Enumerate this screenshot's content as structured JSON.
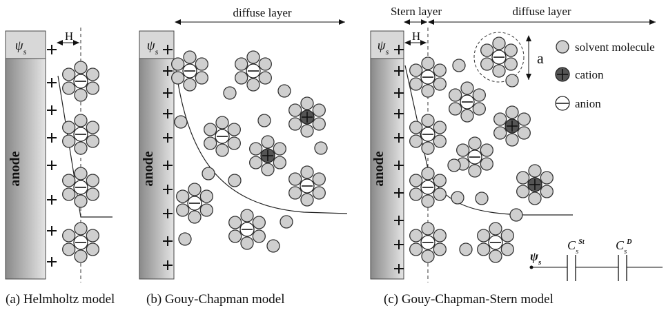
{
  "panels": {
    "a": {
      "caption": "(a) Helmholtz model",
      "electrode": "anode",
      "surface_potential": "ψs",
      "distance": "H"
    },
    "b": {
      "caption": "(b) Gouy-Chapman model",
      "electrode": "anode",
      "surface_potential": "ψs",
      "diffuse_label": "diffuse layer"
    },
    "c": {
      "caption": "(c) Gouy-Chapman-Stern model",
      "electrode": "anode",
      "surface_potential": "ψs",
      "distance": "H",
      "stern_label": "Stern layer",
      "diffuse_label": "diffuse layer",
      "size_label": "a",
      "circuit": {
        "input": "ψs",
        "stern_capacitor": "Cs St",
        "diffuse_capacitor": "Cs D"
      }
    }
  },
  "legend": [
    {
      "key": "solvent",
      "label": "solvent molecule"
    },
    {
      "key": "cation",
      "label": "cation"
    },
    {
      "key": "anion",
      "label": "anion"
    }
  ],
  "colors": {
    "solvent": "#cfcfcf",
    "cation": "#555555",
    "anion": "#ffffff",
    "outline": "#333333",
    "electrode_dark": "#8a8a8a",
    "electrode_light": "#e2e2e2"
  }
}
